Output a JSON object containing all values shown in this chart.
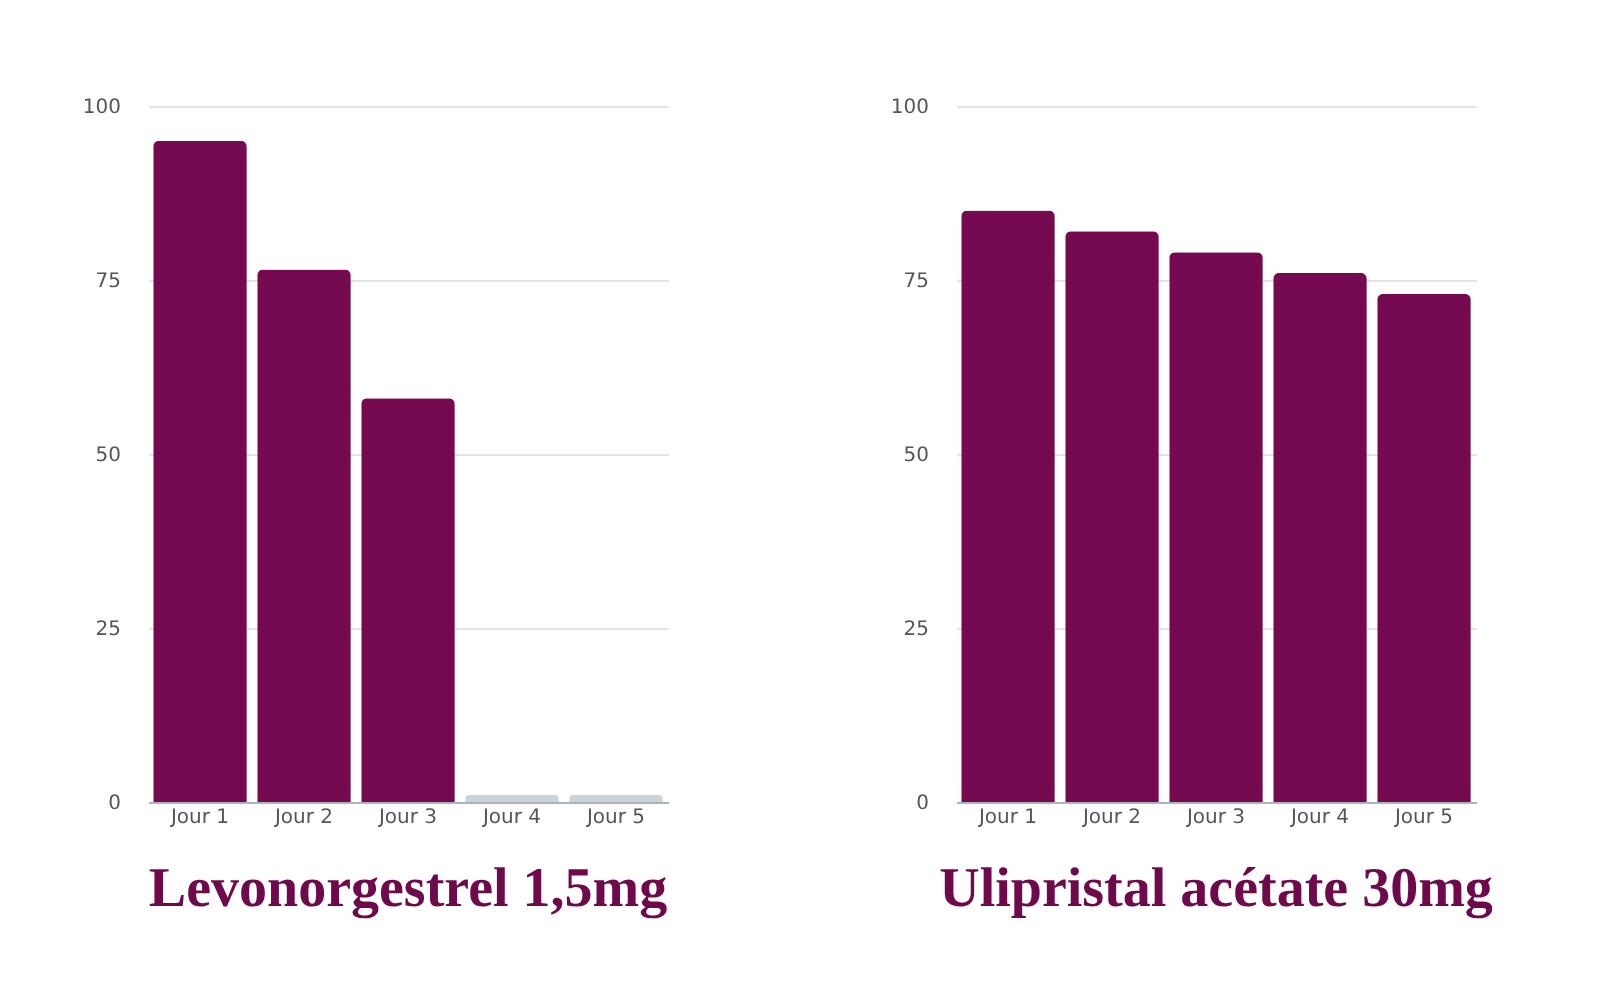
{
  "chart_data": [
    {
      "type": "bar",
      "title": "Levonorgestrel 1,5mg",
      "categories": [
        "Jour 1",
        "Jour 2",
        "Jour 3",
        "Jour 4",
        "Jour 5"
      ],
      "values": [
        95,
        76.5,
        58,
        1,
        1
      ],
      "colors": [
        "#760a50",
        "#760a50",
        "#760a50",
        "#ccd3d8",
        "#ccd3d8"
      ],
      "ylim": [
        0,
        100
      ],
      "yticks": [
        0,
        25,
        50,
        75,
        100
      ],
      "grid": "y"
    },
    {
      "type": "bar",
      "title": "Ulipristal acétate 30mg",
      "categories": [
        "Jour 1",
        "Jour 2",
        "Jour 3",
        "Jour 4",
        "Jour 5"
      ],
      "values": [
        85,
        82,
        79,
        76,
        73
      ],
      "colors": [
        "#760a50",
        "#760a50",
        "#760a50",
        "#760a50",
        "#760a50"
      ],
      "ylim": [
        0,
        100
      ],
      "yticks": [
        0,
        25,
        50,
        75,
        100
      ],
      "grid": "y"
    }
  ]
}
